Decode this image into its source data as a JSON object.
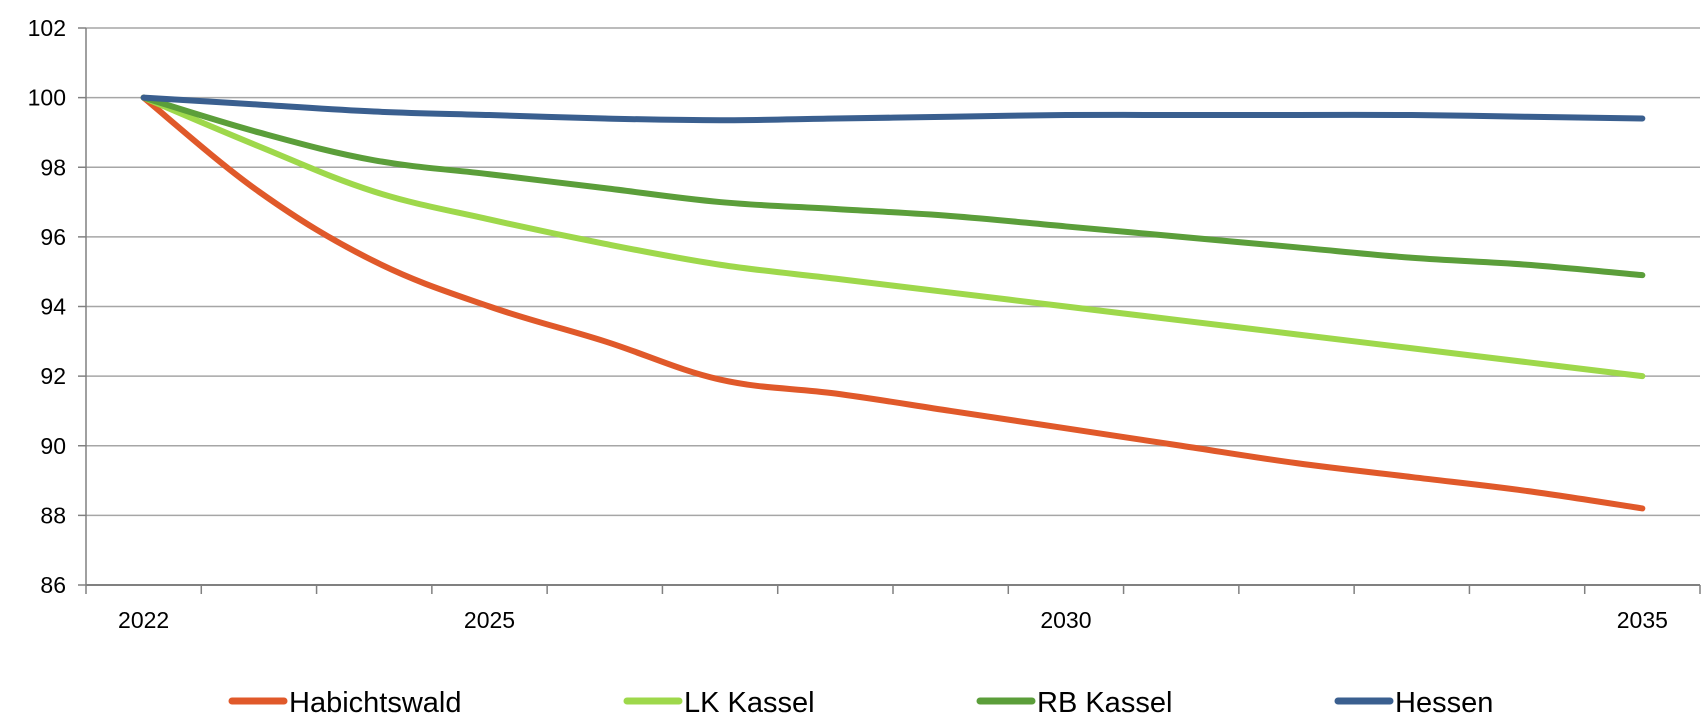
{
  "chart_data": {
    "type": "line",
    "title": "",
    "xlabel": "",
    "ylabel": "",
    "ylim": [
      86,
      102
    ],
    "yticks": [
      86,
      88,
      90,
      92,
      94,
      96,
      98,
      100,
      102
    ],
    "xlim": [
      2021.5,
      2035.5
    ],
    "x_minor_ticks": [
      2021.5,
      2022.5,
      2023.5,
      2024.5,
      2025.5,
      2026.5,
      2027.5,
      2028.5,
      2029.5,
      2030.5,
      2031.5,
      2032.5,
      2033.5,
      2034.5,
      2035.5
    ],
    "xtick_labels": [
      {
        "x": 2022,
        "label": "2022"
      },
      {
        "x": 2025,
        "label": "2025"
      },
      {
        "x": 2030,
        "label": "2030"
      },
      {
        "x": 2035,
        "label": "2035"
      }
    ],
    "grid": true,
    "legend_position": "bottom",
    "x": [
      2022,
      2023,
      2024,
      2025,
      2026,
      2027,
      2028,
      2029,
      2030,
      2031,
      2032,
      2033,
      2034,
      2035
    ],
    "series": [
      {
        "name": "Habichtswald",
        "color": "#E0592A",
        "values": [
          100.0,
          97.3,
          95.3,
          94.0,
          93.0,
          91.9,
          91.5,
          91.0,
          90.5,
          90.0,
          89.5,
          89.1,
          88.7,
          88.2
        ]
      },
      {
        "name": "LK Kassel",
        "color": "#9ED84B",
        "values": [
          100.0,
          98.6,
          97.3,
          96.5,
          95.8,
          95.2,
          94.8,
          94.4,
          94.0,
          93.6,
          93.2,
          92.8,
          92.4,
          92.0
        ]
      },
      {
        "name": "RB Kassel",
        "color": "#5B9E3A",
        "values": [
          100.0,
          99.0,
          98.2,
          97.8,
          97.4,
          97.0,
          96.8,
          96.6,
          96.3,
          96.0,
          95.7,
          95.4,
          95.2,
          94.9
        ]
      },
      {
        "name": "Hessen",
        "color": "#3A5F8F",
        "values": [
          100.0,
          99.8,
          99.6,
          99.5,
          99.4,
          99.35,
          99.4,
          99.45,
          99.5,
          99.5,
          99.5,
          99.5,
          99.45,
          99.4
        ]
      }
    ]
  }
}
